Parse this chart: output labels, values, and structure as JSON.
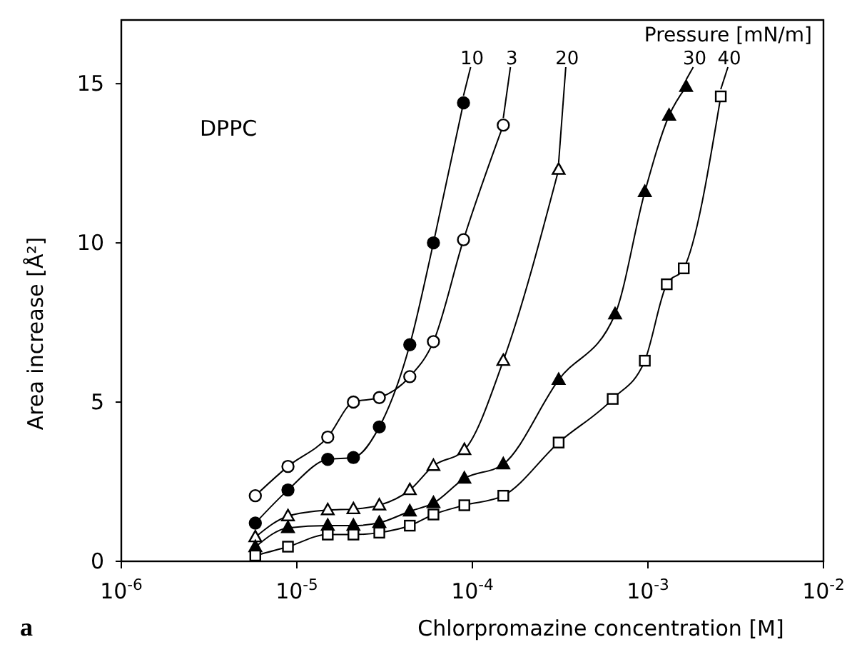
{
  "chart_data": {
    "type": "line",
    "xlabel": "Chlorpromazine concentration [M]",
    "ylabel": "Area increase [Å²]",
    "legend_title": "Pressure [mN/m]",
    "log": "x",
    "xlim": [
      1e-06,
      0.01
    ],
    "ylim": [
      0,
      17
    ],
    "xticks": [
      {
        "value": 1e-06,
        "label": "10$^{-6}$"
      },
      {
        "value": 1e-05,
        "label": "10$^{-5}$"
      },
      {
        "value": 0.0001,
        "label": "10$^{-4}$"
      },
      {
        "value": 0.001,
        "label": "10$^{-3}$"
      },
      {
        "value": 0.01,
        "label": "10$^{-2}$"
      }
    ],
    "yticks": [
      0,
      5,
      10,
      15
    ],
    "grid": false,
    "annotations": [
      "DPPC",
      "a"
    ],
    "series": [
      {
        "name": "10",
        "color": "#000000",
        "marker": "circle",
        "x": [
          5.8e-06,
          8.9e-06,
          1.5e-05,
          2.1e-05,
          2.95e-05,
          4.4e-05,
          6e-05,
          8.9e-05
        ],
        "values": [
          1.2,
          2.24,
          3.2,
          3.26,
          4.22,
          6.8,
          10.0,
          14.4
        ]
      },
      {
        "name": "3",
        "color": "#ffffff",
        "marker": "circle",
        "x": [
          5.8e-06,
          8.9e-06,
          1.5e-05,
          2.1e-05,
          2.95e-05,
          4.4e-05,
          6e-05,
          8.9e-05,
          0.00015
        ],
        "values": [
          2.06,
          2.98,
          3.9,
          5.0,
          5.14,
          5.8,
          6.9,
          10.1,
          13.7
        ]
      },
      {
        "name": "20",
        "color": "#ffffff",
        "marker": "triangle",
        "x": [
          5.8e-06,
          8.9e-06,
          1.5e-05,
          2.1e-05,
          2.95e-05,
          4.4e-05,
          6e-05,
          9e-05,
          0.00015,
          0.00031
        ],
        "values": [
          0.76,
          1.42,
          1.61,
          1.64,
          1.76,
          2.24,
          3.0,
          3.5,
          6.3,
          12.3
        ]
      },
      {
        "name": "30",
        "color": "#000000",
        "marker": "triangle",
        "x": [
          5.8e-06,
          8.9e-06,
          1.5e-05,
          2.1e-05,
          2.95e-05,
          4.4e-05,
          6e-05,
          9e-05,
          0.00015,
          0.00031,
          0.00065,
          0.00096,
          0.00132,
          0.00165
        ],
        "values": [
          0.45,
          1.05,
          1.12,
          1.12,
          1.21,
          1.57,
          1.83,
          2.6,
          3.05,
          5.7,
          7.76,
          11.6,
          14.0,
          14.9
        ]
      },
      {
        "name": "40",
        "color": "#ffffff",
        "marker": "square",
        "x": [
          5.8e-06,
          8.9e-06,
          1.5e-05,
          2.1e-05,
          2.95e-05,
          4.4e-05,
          6e-05,
          9e-05,
          0.00015,
          0.00031,
          0.00063,
          0.00096,
          0.00128,
          0.0016,
          0.0026
        ],
        "values": [
          0.18,
          0.46,
          0.84,
          0.84,
          0.9,
          1.12,
          1.47,
          1.76,
          2.06,
          3.73,
          5.1,
          6.3,
          8.7,
          9.2,
          14.6
        ]
      }
    ]
  }
}
